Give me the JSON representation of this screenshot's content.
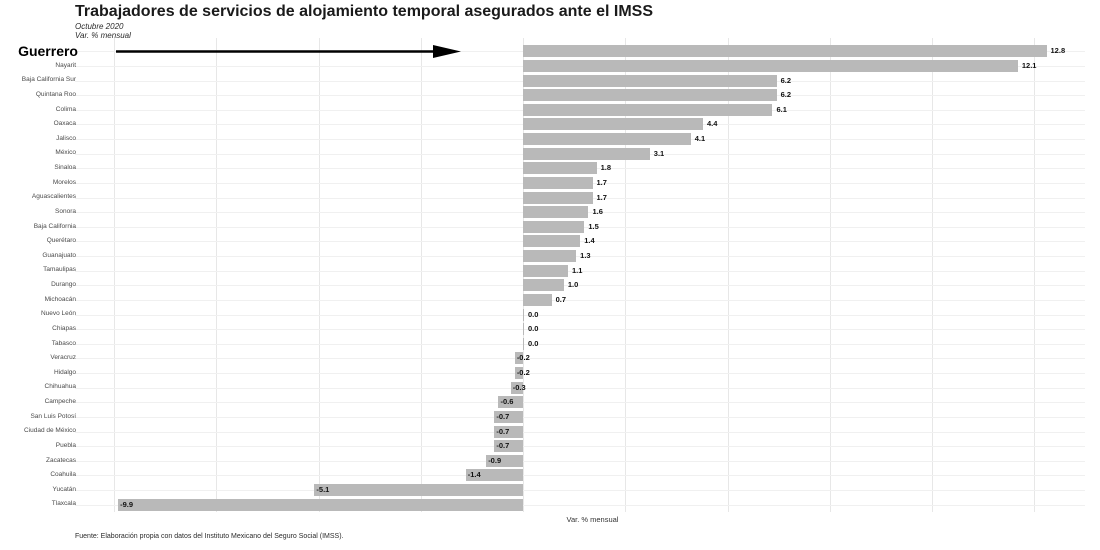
{
  "title": "Trabajadores de servicios de alojamiento temporal asegurados ante el IMSS",
  "subtitle_line1": "Octubre 2020",
  "subtitle_line2": "Var. % mensual",
  "xaxis_title": "Var. % mensual",
  "footer": "Fuente: Elaboración propia con datos del Instituto Mexicano del Seguro Social (IMSS).",
  "highlight_state": "Guerrero",
  "colors": {
    "bar": "#b9b9b9",
    "vertical_grid": "#e7e7e7",
    "horizontal_grid": "#f0f0f0",
    "value_label": "#111111",
    "category_label": "#4a4a4a",
    "arrow": "#000000",
    "background": "#ffffff"
  },
  "chart_data": {
    "type": "bar",
    "orientation": "horizontal",
    "title": "Trabajadores de servicios de alojamiento temporal asegurados ante el IMSS",
    "subtitle": "Octubre 2020",
    "units": "Var. % mensual",
    "xlabel": "Var. % mensual",
    "ylabel": "",
    "legend": "none",
    "grid": true,
    "xlim": [
      -10.5,
      13.5
    ],
    "gridline_values": [
      -10,
      -7.5,
      -5,
      -2.5,
      0,
      2.5,
      5,
      7.5,
      10,
      12.5
    ],
    "bar_color": "#b9b9b9",
    "value_label_format": "one-decimal",
    "highlight": {
      "category": "Guerrero",
      "annotation": "bold-label-with-arrow"
    },
    "source": "Fuente: Elaboración propia con datos del Instituto Mexicano del Seguro Social (IMSS).",
    "categories": [
      "Guerrero",
      "Nayarit",
      "Baja California Sur",
      "Quintana Roo",
      "Colima",
      "Oaxaca",
      "Jalisco",
      "México",
      "Sinaloa",
      "Morelos",
      "Aguascalientes",
      "Sonora",
      "Baja California",
      "Querétaro",
      "Guanajuato",
      "Tamaulipas",
      "Durango",
      "Michoacán",
      "Nuevo León",
      "Chiapas",
      "Tabasco",
      "Veracruz",
      "Hidalgo",
      "Chihuahua",
      "Campeche",
      "San Luis Potosí",
      "Ciudad de México",
      "Puebla",
      "Zacatecas",
      "Coahuila",
      "Yucatán",
      "Tlaxcala"
    ],
    "values": [
      12.8,
      12.1,
      6.2,
      6.2,
      6.1,
      4.4,
      4.1,
      3.1,
      1.8,
      1.7,
      1.7,
      1.6,
      1.5,
      1.4,
      1.3,
      1.1,
      1.0,
      0.7,
      0.0,
      0.0,
      0.0,
      -0.2,
      -0.2,
      -0.3,
      -0.6,
      -0.7,
      -0.7,
      -0.7,
      -0.9,
      -1.4,
      -5.1,
      -9.9
    ]
  }
}
